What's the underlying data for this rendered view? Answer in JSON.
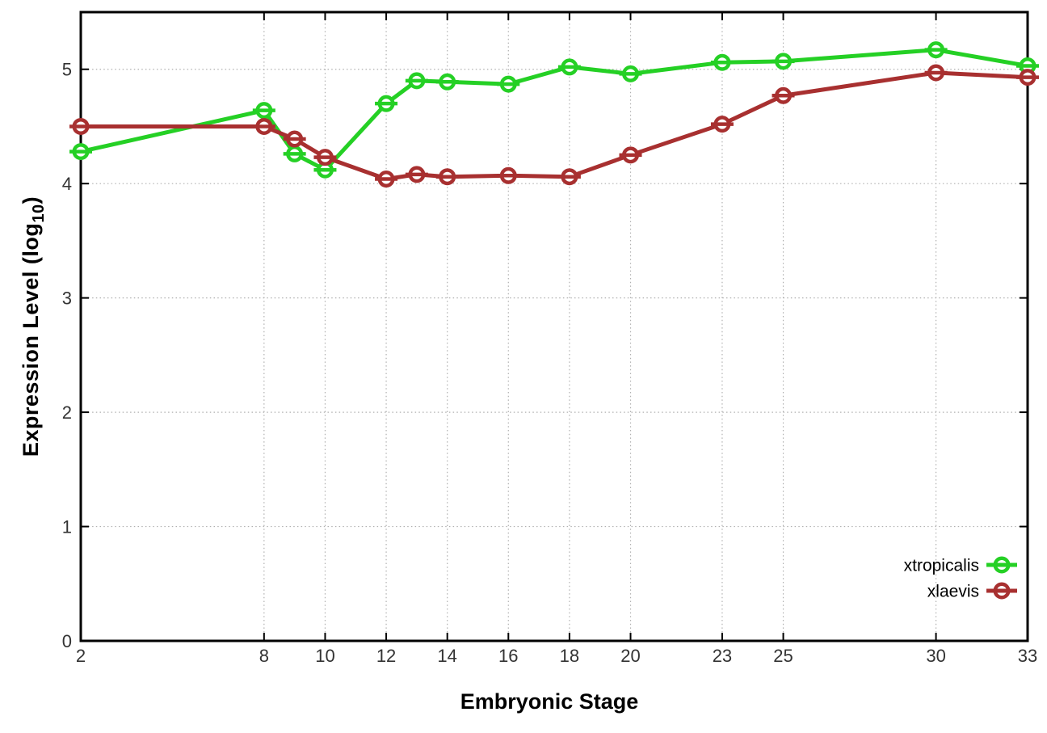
{
  "figure": {
    "background": "#ffffff"
  },
  "chart_data": {
    "type": "line",
    "title": "",
    "xlabel": "Embryonic Stage",
    "ylabel": "Expression Level (log10)",
    "ylabel_parts": {
      "base": "Expression Level (log",
      "subscript": "10",
      "close": ")"
    },
    "x": [
      2,
      8,
      9,
      10,
      12,
      13,
      14,
      16,
      18,
      20,
      23,
      25,
      30,
      33
    ],
    "series": [
      {
        "name": "xtropicalis",
        "color": "#25d025",
        "values": [
          4.28,
          4.64,
          4.26,
          4.12,
          4.7,
          4.9,
          4.89,
          4.87,
          5.02,
          4.96,
          5.06,
          5.07,
          5.17,
          5.03
        ]
      },
      {
        "name": "xlaevis",
        "color": "#a83030",
        "values": [
          4.5,
          4.5,
          4.39,
          4.23,
          4.04,
          4.08,
          4.06,
          4.07,
          4.06,
          4.25,
          4.52,
          4.77,
          4.97,
          4.93
        ]
      }
    ],
    "xticks": [
      2,
      8,
      10,
      12,
      14,
      16,
      18,
      20,
      23,
      25,
      30,
      33
    ],
    "yticks": [
      0,
      1,
      2,
      3,
      4,
      5
    ],
    "xlim": [
      2,
      33
    ],
    "ylim": [
      0,
      5.5
    ],
    "grid": true,
    "grid_color": "#b0b0b0",
    "axis_color": "#000000",
    "tick_label_color": "#333333",
    "marker": "open-circle-with-error-bar",
    "legend_position": "inside-right",
    "legend_entries": [
      "xtropicalis",
      "xlaevis"
    ]
  }
}
